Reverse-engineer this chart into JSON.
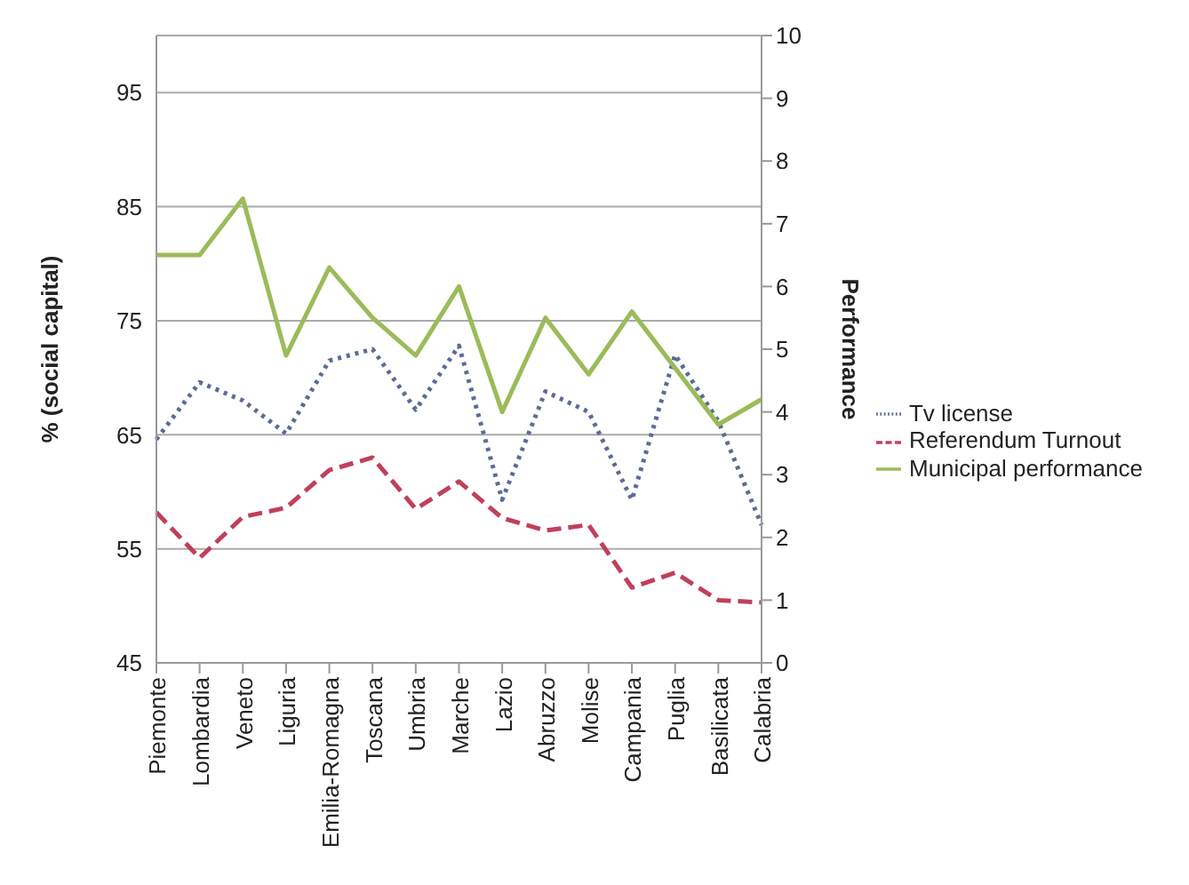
{
  "chart_data": {
    "type": "line",
    "categories": [
      "Piemonte",
      "Lombardia",
      "Veneto",
      "Liguria",
      "Emilia-Romagna",
      "Toscana",
      "Umbria",
      "Marche",
      "Lazio",
      "Abruzzo",
      "Molise",
      "Campania",
      "Puglia",
      "Basilicata",
      "Calabria"
    ],
    "series": [
      {
        "name": "Tv license",
        "color": "#5b6b9a",
        "line_style": "dotted",
        "values": [
          64.6,
          69.6,
          68.0,
          65.1,
          71.5,
          72.5,
          67.2,
          72.8,
          59.3,
          68.8,
          67.0,
          59.3,
          72.0,
          66.2,
          57.1
        ]
      },
      {
        "name": "Referendum Turnout",
        "color": "#c0405a",
        "line_style": "dashed",
        "values": [
          58.2,
          54.2,
          57.8,
          58.6,
          61.9,
          63.0,
          58.5,
          60.9,
          57.7,
          56.6,
          57.1,
          51.6,
          52.9,
          50.5,
          50.3
        ]
      },
      {
        "name": "Municipal performance",
        "color": "#9bbb59",
        "line_style": "solid",
        "axis": "y2",
        "values": [
          6.5,
          6.5,
          7.4,
          4.9,
          6.3,
          5.5,
          4.9,
          6.0,
          4.0,
          5.5,
          4.6,
          5.6,
          4.7,
          3.8,
          4.2
        ]
      }
    ],
    "ylabel": "% (social capital)",
    "y2label": "Performance",
    "ylim": [
      45,
      100
    ],
    "yticks": [
      45,
      55,
      65,
      75,
      85,
      95
    ],
    "y2lim": [
      0,
      10
    ],
    "y2ticks": [
      0,
      1,
      2,
      3,
      4,
      5,
      6,
      7,
      8,
      9,
      10
    ],
    "grid": "y",
    "legend": "right",
    "marker": "none"
  }
}
